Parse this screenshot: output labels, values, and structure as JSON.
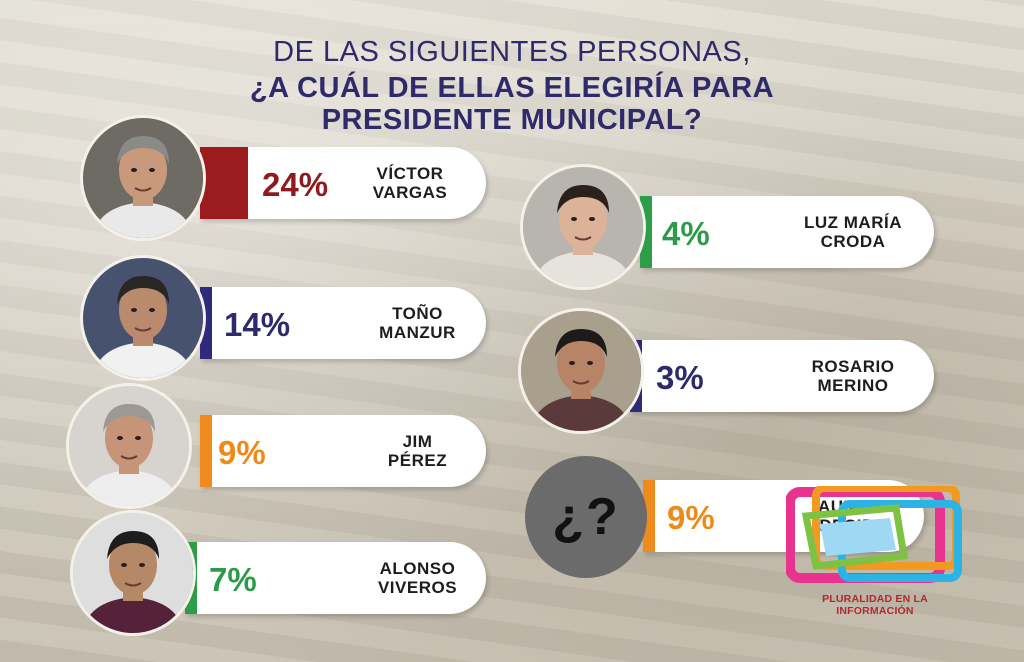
{
  "title": {
    "line1": "DE LAS SIGUIENTES PERSONAS,",
    "line2": "¿A CUÁL DE ELLAS ELEGIRÍA PARA",
    "line3": "PRESIDENTE MUNICIPAL?"
  },
  "chart_data": {
    "type": "bar",
    "title": "DE LAS SIGUIENTES PERSONAS, ¿A CUÁL DE ELLAS ELEGIRÍA PARA PRESIDENTE MUNICIPAL?",
    "categories": [
      "VÍCTOR VARGAS",
      "TOÑO MANZUR",
      "JIM PÉREZ",
      "ALONSO VIVEROS",
      "LUZ MARÍA CRODA",
      "ROSARIO MERINO",
      "AUN NO DECIDE"
    ],
    "values": [
      24,
      14,
      9,
      7,
      4,
      3,
      9
    ],
    "unit": "%"
  },
  "candidates": [
    {
      "line1": "VÍCTOR",
      "line2": "VARGAS",
      "pct": "24%",
      "color": "#9b1b1f",
      "text_color": "#8e1c1f",
      "skin": "#c9997c",
      "hair": "#8a8a86",
      "shirt": "#e9e9e9",
      "bg": "#6e6a64"
    },
    {
      "line1": "TOÑO",
      "line2": "MANZUR",
      "pct": "14%",
      "color": "#2f2a7a",
      "text_color": "#2e2a6b",
      "skin": "#b98a6c",
      "hair": "#2a2624",
      "shirt": "#f1f1f1",
      "bg": "#47526e"
    },
    {
      "line1": "JIM",
      "line2": "PÉREZ",
      "pct": "9%",
      "color": "#ef8a1c",
      "text_color": "#ee8a1a",
      "skin": "#c69478",
      "hair": "#9b9994",
      "shirt": "#ededed",
      "bg": "#d7d3cf"
    },
    {
      "line1": "ALONSO",
      "line2": "VIVEROS",
      "pct": "7%",
      "color": "#2e9d4a",
      "text_color": "#2e9a48",
      "skin": "#b58868",
      "hair": "#1e1c1c",
      "shirt": "#55223a",
      "bg": "#dedede"
    },
    {
      "line1": "LUZ MARÍA",
      "line2": "CRODA",
      "pct": "4%",
      "color": "#2e9d4a",
      "text_color": "#2e9a48",
      "skin": "#dcb299",
      "hair": "#2b201c",
      "shirt": "#e6e2dc",
      "bg": "#b8b4ae"
    },
    {
      "line1": "ROSARIO",
      "line2": "MERINO",
      "pct": "3%",
      "color": "#2f2a7a",
      "text_color": "#2e2a6b",
      "skin": "#b88468",
      "hair": "#1d1a1a",
      "shirt": "#5a3a3a",
      "bg": "#a89f8c"
    },
    {
      "line1": "AUN NO",
      "line2": "DECIDE",
      "pct": "9%",
      "color": "#ef8a1c",
      "text_color": "#ee8a1a"
    }
  ],
  "undecided_symbol": "¿?",
  "logo": {
    "text": "PLURALIDAD EN LA INFORMACIÓN",
    "colors": [
      "#e8348f",
      "#f29a1f",
      "#2cb3e6",
      "#7dc243",
      "#8d3bb0"
    ]
  }
}
